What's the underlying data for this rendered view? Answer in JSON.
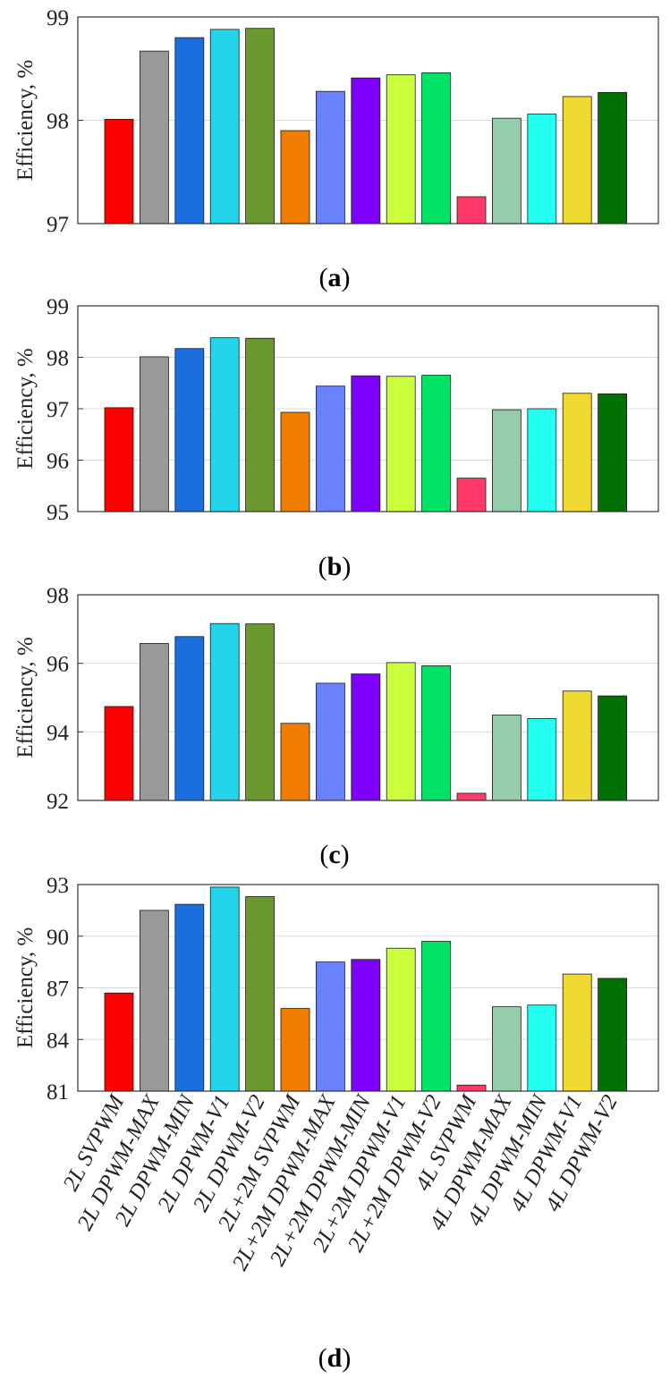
{
  "chart_data": [
    {
      "type": "bar",
      "panel_label": "a",
      "ylabel": "Efficiency, %",
      "ylim": [
        97,
        99
      ],
      "yticks": [
        97,
        98,
        99
      ],
      "grid": true,
      "categories": [
        "2L SVPWM",
        "2L DPWM-MAX",
        "2L DPWM-MIN",
        "2L DPWM-V1",
        "2L DPWM-V2",
        "2L+2M SVPWM",
        "2L+2M DPWM-MAX",
        "2L+2M DPWM-MIN",
        "2L+2M DPWM-V1",
        "2L+2M DPWM-V2",
        "4L SVPWM",
        "4L DPWM-MAX",
        "4L DPWM-MIN",
        "4L DPWM-V1",
        "4L DPWM-V2"
      ],
      "values": [
        98.01,
        98.67,
        98.8,
        98.88,
        98.89,
        97.9,
        98.28,
        98.41,
        98.44,
        98.46,
        97.26,
        98.02,
        98.06,
        98.23,
        98.27
      ]
    },
    {
      "type": "bar",
      "panel_label": "b",
      "ylabel": "Efficiency, %",
      "ylim": [
        95,
        99
      ],
      "yticks": [
        95,
        96,
        97,
        98,
        99
      ],
      "grid": true,
      "categories": [
        "2L SVPWM",
        "2L DPWM-MAX",
        "2L DPWM-MIN",
        "2L DPWM-V1",
        "2L DPWM-V2",
        "2L+2M SVPWM",
        "2L+2M DPWM-MAX",
        "2L+2M DPWM-MIN",
        "2L+2M DPWM-V1",
        "2L+2M DPWM-V2",
        "4L SVPWM",
        "4L DPWM-MAX",
        "4L DPWM-MIN",
        "4L DPWM-V1",
        "4L DPWM-V2"
      ],
      "values": [
        97.02,
        98.01,
        98.17,
        98.38,
        98.37,
        96.93,
        97.44,
        97.64,
        97.63,
        97.65,
        95.65,
        96.98,
        97.0,
        97.3,
        97.29
      ]
    },
    {
      "type": "bar",
      "panel_label": "c",
      "ylabel": "Efficiency, %",
      "ylim": [
        92,
        98
      ],
      "yticks": [
        92,
        94,
        96,
        98
      ],
      "grid": true,
      "categories": [
        "2L SVPWM",
        "2L DPWM-MAX",
        "2L DPWM-MIN",
        "2L DPWM-V1",
        "2L DPWM-V2",
        "2L+2M SVPWM",
        "2L+2M DPWM-MAX",
        "2L+2M DPWM-MIN",
        "2L+2M DPWM-V1",
        "2L+2M DPWM-V2",
        "4L SVPWM",
        "4L DPWM-MAX",
        "4L DPWM-MIN",
        "4L DPWM-V1",
        "4L DPWM-V2"
      ],
      "values": [
        94.74,
        96.58,
        96.78,
        97.16,
        97.15,
        94.25,
        95.42,
        95.69,
        96.02,
        95.93,
        92.21,
        94.49,
        94.39,
        95.19,
        95.05
      ]
    },
    {
      "type": "bar",
      "panel_label": "d",
      "ylabel": "Efficiency, %",
      "ylim": [
        81,
        93
      ],
      "yticks": [
        81,
        84,
        87,
        90,
        93
      ],
      "grid": true,
      "categories": [
        "2L SVPWM",
        "2L DPWM-MAX",
        "2L DPWM-MIN",
        "2L DPWM-V1",
        "2L DPWM-V2",
        "2L+2M SVPWM",
        "2L+2M DPWM-MAX",
        "2L+2M DPWM-MIN",
        "2L+2M DPWM-V1",
        "2L+2M DPWM-V2",
        "4L SVPWM",
        "4L DPWM-MAX",
        "4L DPWM-MIN",
        "4L DPWM-V1",
        "4L DPWM-V2"
      ],
      "values": [
        86.7,
        91.5,
        91.85,
        92.85,
        92.3,
        85.8,
        88.5,
        88.65,
        89.3,
        89.7,
        81.35,
        85.9,
        86.0,
        87.8,
        87.55
      ]
    }
  ],
  "colors": [
    "#fd0000",
    "#999999",
    "#1b6ede",
    "#24d4ea",
    "#6a982e",
    "#ef7d00",
    "#6a82ff",
    "#7f00ff",
    "#cbff3b",
    "#01e366",
    "#ff3a6a",
    "#95cdab",
    "#23fff0",
    "#f0d932",
    "#007103"
  ]
}
